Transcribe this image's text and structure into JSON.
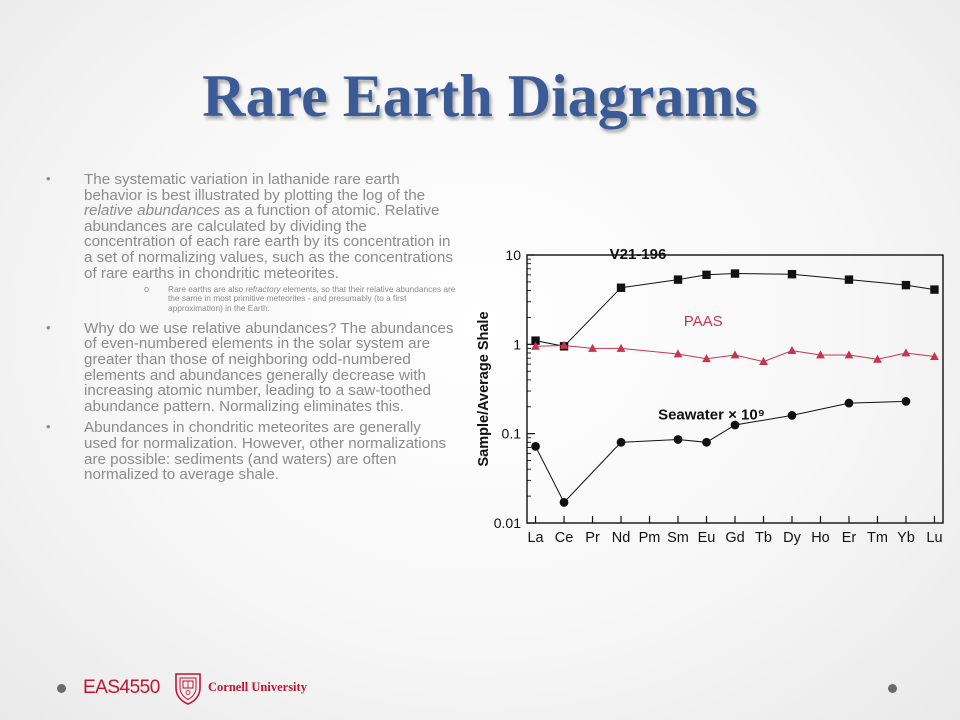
{
  "title": "Rare Earth Diagrams",
  "bullets": [
    {
      "pre": "The systematic variation in lathanide rare earth behavior is best illustrated by plotting the log of the ",
      "em": "relative abundances",
      "post": " as a function of atomic. Relative abundances are calculated by dividing the concentration of each rare earth by its concentration in a set of normalizing values, such as the concentrations of rare earths in chondritic meteorites.",
      "sub": {
        "pre": "Rare earths are also ",
        "em": "refractory",
        "post": " elements, so that their relative abundances are the same in most primitive meteorites - and presumably (to a first approximation) in the Earth."
      }
    },
    {
      "text": "Why do we use relative abundances? The abundances of even-numbered elements in the solar system are greater than those of neighboring odd-numbered elements and abundances generally decrease with increasing atomic number, leading to a saw-toothed abundance pattern. Normalizing eliminates this."
    },
    {
      "text": "Abundances in chondritic meteorites are generally used for normalization. However, other normalizations are possible: sediments (and waters) are often normalized to average shale."
    }
  ],
  "footer": {
    "course": "EAS4550",
    "university": "Cornell University"
  },
  "chart_data": {
    "type": "line",
    "ylabel": "Sample/Average Shale",
    "yscale": "log",
    "ylim": [
      0.01,
      10
    ],
    "yticks": [
      {
        "value": 10,
        "label": "10"
      },
      {
        "value": 1,
        "label": "1"
      },
      {
        "value": 0.1,
        "label": "0.1"
      },
      {
        "value": 0.01,
        "label": "0.01"
      }
    ],
    "categories": [
      "La",
      "Ce",
      "Pr",
      "Nd",
      "Pm",
      "Sm",
      "Eu",
      "Gd",
      "Tb",
      "Dy",
      "Ho",
      "Er",
      "Tm",
      "Yb",
      "Lu"
    ],
    "series": [
      {
        "name": "V21-196",
        "marker": "square",
        "color": "#111111",
        "values": [
          1.1,
          0.95,
          null,
          4.3,
          null,
          5.3,
          6.0,
          6.2,
          null,
          6.1,
          null,
          5.3,
          null,
          4.6,
          4.1
        ]
      },
      {
        "name": "PAAS",
        "marker": "triangle",
        "color": "#c8334f",
        "values": [
          0.95,
          0.97,
          0.9,
          0.9,
          null,
          0.78,
          0.69,
          0.76,
          0.64,
          0.85,
          0.76,
          0.76,
          0.68,
          0.8,
          0.73
        ]
      },
      {
        "name": "Seawater × 10⁹",
        "marker": "circle",
        "color": "#111111",
        "values": [
          0.072,
          0.017,
          null,
          0.08,
          null,
          0.086,
          0.08,
          0.125,
          null,
          0.16,
          null,
          0.22,
          null,
          0.23,
          null
        ]
      }
    ]
  },
  "colors": {
    "title": "#3a5b96",
    "text": "#8b8b8b",
    "brand": "#c4122f"
  }
}
